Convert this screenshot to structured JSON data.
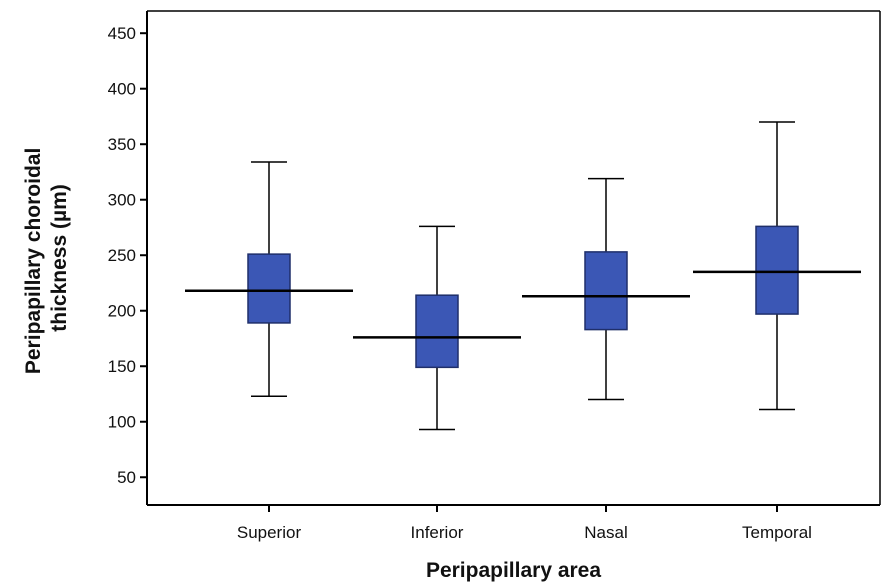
{
  "chart_data": {
    "type": "box",
    "xlabel": "Peripapillary area",
    "ylabel_lines": [
      "Peripapillary choroidal",
      "thickness (µm)"
    ],
    "ylim": [
      25,
      470
    ],
    "yticks": [
      50,
      100,
      150,
      200,
      250,
      300,
      350,
      400,
      450
    ],
    "grid": false,
    "categories": [
      "Superior",
      "Inferior",
      "Nasal",
      "Temporal"
    ],
    "boxes": [
      {
        "category": "Superior",
        "whisker_low": 123,
        "q1": 189,
        "median": 218,
        "q3": 251,
        "whisker_high": 334
      },
      {
        "category": "Inferior",
        "whisker_low": 93,
        "q1": 149,
        "median": 176,
        "q3": 214,
        "whisker_high": 276
      },
      {
        "category": "Nasal",
        "whisker_low": 120,
        "q1": 183,
        "median": 213,
        "q3": 253,
        "whisker_high": 319
      },
      {
        "category": "Temporal",
        "whisker_low": 111,
        "q1": 197,
        "median": 235,
        "q3": 276,
        "whisker_high": 370
      }
    ],
    "box_color": "#3b57b5",
    "box_edge_color": "#1f2f6a"
  }
}
